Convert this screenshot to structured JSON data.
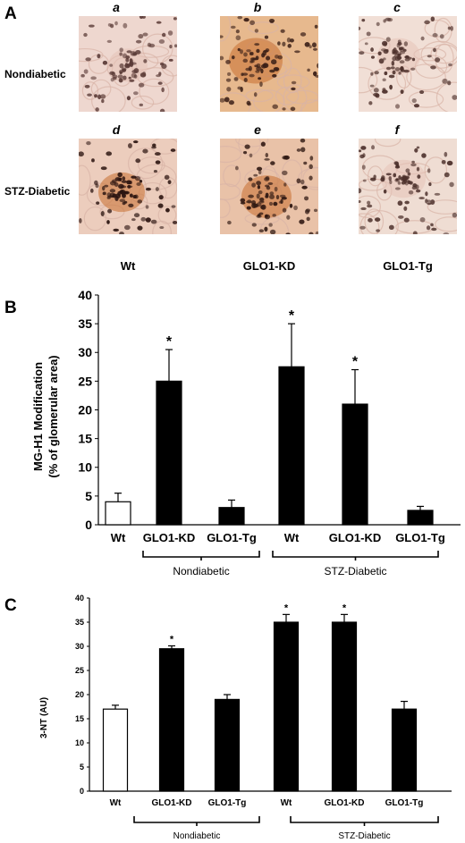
{
  "panel_a": {
    "letter": "A",
    "column_letters": [
      "a",
      "b",
      "c",
      "d",
      "e",
      "f"
    ],
    "row_labels": [
      "Nondiabetic",
      "STZ-Diabetic"
    ],
    "genotype_labels": [
      "Wt",
      "GLO1-KD",
      "GLO1-Tg"
    ],
    "image_content": "histology-micrograph"
  },
  "chart_data": [
    {
      "type": "bar",
      "panel_letter": "B",
      "categories": [
        "Wt",
        "GLO1-KD",
        "GLO1-Tg",
        "Wt",
        "GLO1-KD",
        "GLO1-Tg"
      ],
      "values": [
        4,
        25,
        3,
        27.5,
        21,
        2.5
      ],
      "errors": [
        1.5,
        5.5,
        1.3,
        7.5,
        6,
        0.7
      ],
      "significance": [
        "",
        "*",
        "",
        "*",
        "*",
        ""
      ],
      "fills": [
        "#ffffff",
        "#000000",
        "#000000",
        "#000000",
        "#000000",
        "#000000"
      ],
      "ylabel_line1": "MG-H1 Modification",
      "ylabel_line2": "(% of glomerular area)",
      "ylim": [
        0,
        40
      ],
      "yticks": [
        0,
        5,
        10,
        15,
        20,
        25,
        30,
        35,
        40
      ],
      "groups": [
        "Nondiabetic",
        "STZ-Diabetic"
      ]
    },
    {
      "type": "bar",
      "panel_letter": "C",
      "categories": [
        "Wt",
        "GLO1-KD",
        "GLO1-Tg",
        "Wt",
        "GLO1-KD",
        "GLO1-Tg"
      ],
      "values": [
        17,
        29.5,
        19,
        35,
        35,
        17
      ],
      "errors": [
        0.8,
        0.6,
        1.0,
        1.6,
        1.6,
        1.6
      ],
      "significance": [
        "",
        "*",
        "",
        "*",
        "*",
        ""
      ],
      "fills": [
        "#ffffff",
        "#000000",
        "#000000",
        "#000000",
        "#000000",
        "#000000"
      ],
      "ylabel": "3-NT (AU)",
      "ylim": [
        0,
        40
      ],
      "yticks": [
        0,
        5,
        10,
        15,
        20,
        25,
        30,
        35,
        40
      ],
      "groups": [
        "Nondiabetic",
        "STZ-Diabetic"
      ]
    }
  ]
}
